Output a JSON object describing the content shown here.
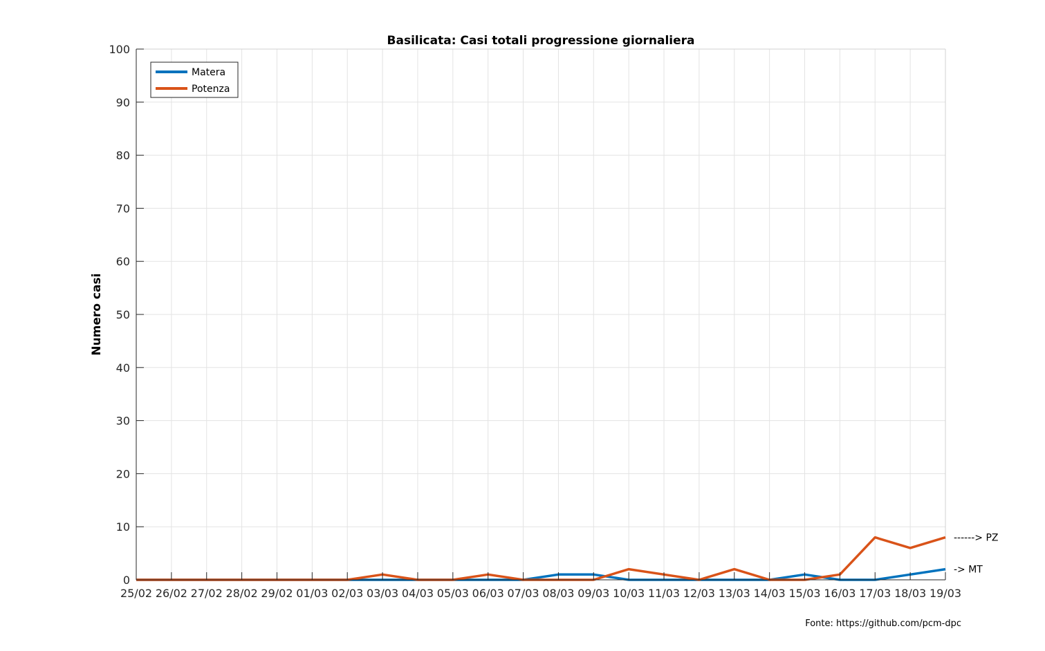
{
  "chart_data": {
    "type": "line",
    "title": "Basilicata: Casi totali progressione giornaliera",
    "ylabel": "Numero casi",
    "xlabel": "",
    "ylim": [
      0,
      100
    ],
    "yticks": [
      0,
      10,
      20,
      30,
      40,
      50,
      60,
      70,
      80,
      90,
      100
    ],
    "categories": [
      "25/02",
      "26/02",
      "27/02",
      "28/02",
      "29/02",
      "01/03",
      "02/03",
      "03/03",
      "04/03",
      "05/03",
      "06/03",
      "07/03",
      "08/03",
      "09/03",
      "10/03",
      "11/03",
      "12/03",
      "13/03",
      "14/03",
      "15/03",
      "16/03",
      "17/03",
      "18/03",
      "19/03"
    ],
    "grid": true,
    "legend_location": "top-left",
    "series": [
      {
        "name": "Matera",
        "color": "#0072BD",
        "values": [
          0,
          0,
          0,
          0,
          0,
          0,
          0,
          0,
          0,
          0,
          0,
          0,
          1,
          1,
          0,
          0,
          0,
          0,
          0,
          1,
          0,
          0,
          1,
          2
        ]
      },
      {
        "name": "Potenza",
        "color": "#D95319",
        "values": [
          0,
          0,
          0,
          0,
          0,
          0,
          0,
          1,
          0,
          0,
          1,
          0,
          0,
          0,
          2,
          1,
          0,
          2,
          0,
          0,
          1,
          8,
          6,
          8
        ]
      }
    ],
    "annotations": [
      {
        "text": "------> PZ",
        "series": "Potenza"
      },
      {
        "text": "-> MT",
        "series": "Matera"
      }
    ]
  },
  "footer": {
    "source": "Fonte: https://github.com/pcm-dpc"
  }
}
